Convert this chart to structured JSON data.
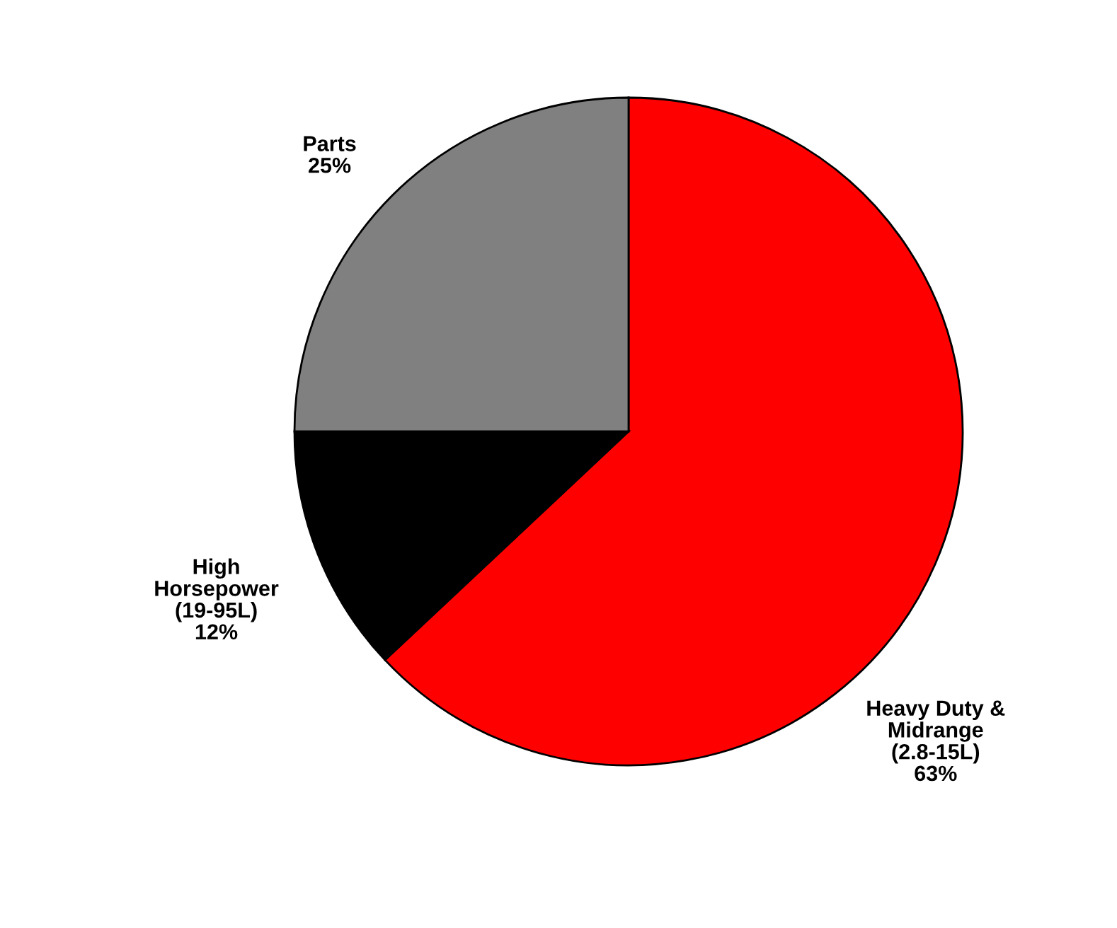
{
  "chart_data": {
    "type": "pie",
    "categories": [
      "Heavy Duty &\nMidrange\n(2.8-15L)",
      "High\nHorsepower\n(19-95L)",
      "Parts"
    ],
    "values": [
      63,
      12,
      25
    ],
    "value_labels": [
      "63%",
      "12%",
      "25%"
    ],
    "colors": [
      "#ff0000",
      "#000000",
      "#808080"
    ],
    "legend": false
  }
}
